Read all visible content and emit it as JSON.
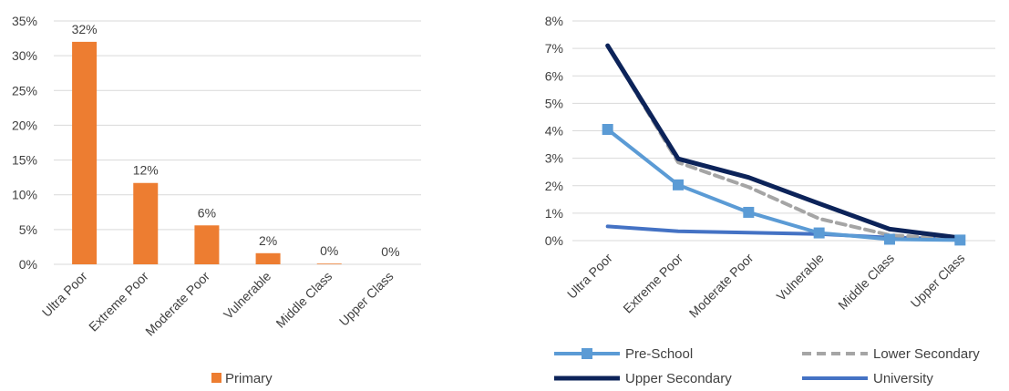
{
  "chart_data": [
    {
      "type": "bar",
      "categories": [
        "Ultra Poor",
        "Extreme Poor",
        "Moderate Poor",
        "Vulnerable",
        "Middle Class",
        "Upper Class"
      ],
      "series": [
        {
          "name": "Primary",
          "values": [
            32,
            11.7,
            5.6,
            1.6,
            0.1,
            0.0
          ],
          "color": "#ED7D31"
        }
      ],
      "data_labels": [
        "32%",
        "12%",
        "6%",
        "2%",
        "0%",
        "0%"
      ],
      "ylim": [
        0,
        35
      ],
      "yticks": [
        0,
        5,
        10,
        15,
        20,
        25,
        30,
        35
      ],
      "ytick_labels": [
        "0%",
        "5%",
        "10%",
        "15%",
        "20%",
        "25%",
        "30%",
        "35%"
      ],
      "grid": true,
      "legend_position": "bottom"
    },
    {
      "type": "line",
      "categories": [
        "Ultra Poor",
        "Extreme Poor",
        "Moderate Poor",
        "Vulnerable",
        "Middle Class",
        "Upper Class"
      ],
      "series": [
        {
          "name": "Pre-School",
          "values": [
            4.05,
            2.03,
            1.03,
            0.28,
            0.05,
            0.02
          ],
          "color": "#5B9BD5",
          "style": "solid-square-markers"
        },
        {
          "name": "Lower Secondary",
          "values": [
            7.1,
            2.85,
            1.95,
            0.8,
            0.2,
            0.05
          ],
          "color": "#A5A5A5",
          "style": "dashed"
        },
        {
          "name": "Upper Secondary",
          "values": [
            7.1,
            2.98,
            2.3,
            1.35,
            0.42,
            0.1
          ],
          "color": "#0C2359",
          "style": "solid-thick"
        },
        {
          "name": "University",
          "values": [
            0.52,
            0.34,
            0.29,
            0.24,
            0.11,
            0.06
          ],
          "color": "#4472C4",
          "style": "solid"
        }
      ],
      "ylim": [
        0,
        8
      ],
      "yticks": [
        0,
        1,
        2,
        3,
        4,
        5,
        6,
        7,
        8
      ],
      "ytick_labels": [
        "0%",
        "1%",
        "2%",
        "3%",
        "4%",
        "5%",
        "6%",
        "7%",
        "8%"
      ],
      "grid": true,
      "legend_position": "bottom"
    }
  ]
}
